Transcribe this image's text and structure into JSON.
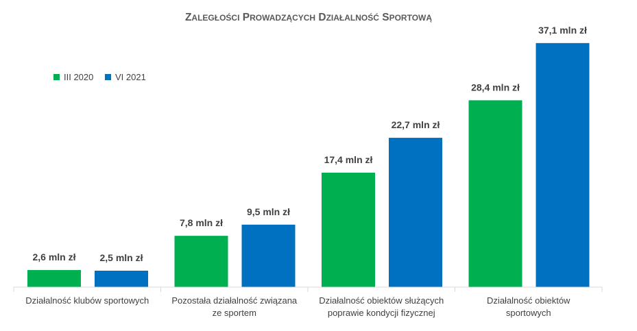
{
  "chart_data": {
    "type": "bar",
    "title": "Zaległości prowadzących działalność sportową",
    "categories": [
      [
        "Działalność klubów sportowych"
      ],
      [
        "Pozostała działalność związana",
        "ze sportem"
      ],
      [
        "Działalność obiektów służących",
        "poprawie kondycji fizycznej"
      ],
      [
        "Działalność obiektów",
        "sportowych"
      ]
    ],
    "series": [
      {
        "name": "III 2020",
        "color": "#00b050",
        "values": [
          2.6,
          7.8,
          17.4,
          28.4
        ],
        "labels": [
          "2,6 mln zł",
          "7,8 mln zł",
          "17,4 mln zł",
          "28,4 mln zł"
        ]
      },
      {
        "name": "VI 2021",
        "color": "#0070c0",
        "values": [
          2.5,
          9.5,
          22.7,
          37.1
        ],
        "labels": [
          "2,5 mln zł",
          "9,5 mln zł",
          "22,7 mln zł",
          "37,1 mln zł"
        ]
      }
    ],
    "unit": "mln zł",
    "ylim": [
      0,
      40
    ],
    "grid": false,
    "legend_position": "top-left"
  }
}
